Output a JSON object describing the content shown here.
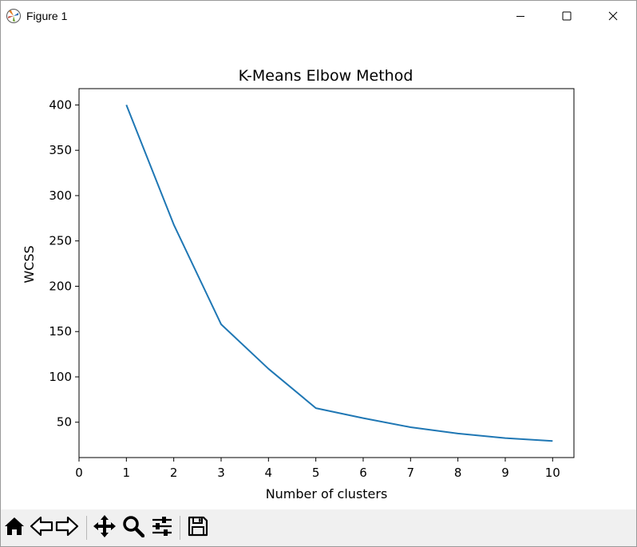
{
  "window": {
    "title": "Figure 1",
    "icons": {
      "app": "matplotlib-icon",
      "minimize": "minimize-icon",
      "maximize": "maximize-icon",
      "close": "close-icon"
    }
  },
  "toolbar": {
    "buttons": [
      {
        "name": "home-icon"
      },
      {
        "name": "back-arrow-icon"
      },
      {
        "name": "forward-arrow-icon"
      },
      {
        "name": "pan-move-icon"
      },
      {
        "name": "zoom-magnifier-icon"
      },
      {
        "name": "configure-subplots-icon"
      },
      {
        "name": "save-floppy-icon"
      }
    ]
  },
  "chart_data": {
    "type": "line",
    "title": "K-Means Elbow Method",
    "xlabel": "Number of clusters",
    "ylabel": "WCSS",
    "x": [
      1,
      2,
      3,
      4,
      5,
      6,
      7,
      8,
      9,
      10
    ],
    "series": [
      {
        "values": [
          400,
          268,
          158,
          109,
          65.5,
          54.5,
          44.5,
          37.5,
          32.5,
          29.3
        ],
        "color": "#1f77b4"
      }
    ],
    "xlim": [
      0,
      10.45
    ],
    "ylim": [
      11,
      418
    ],
    "xticks": [
      0,
      1,
      2,
      3,
      4,
      5,
      6,
      7,
      8,
      9,
      10
    ],
    "yticks": [
      50,
      100,
      150,
      200,
      250,
      300,
      350,
      400
    ],
    "grid": false,
    "legend": "none"
  }
}
